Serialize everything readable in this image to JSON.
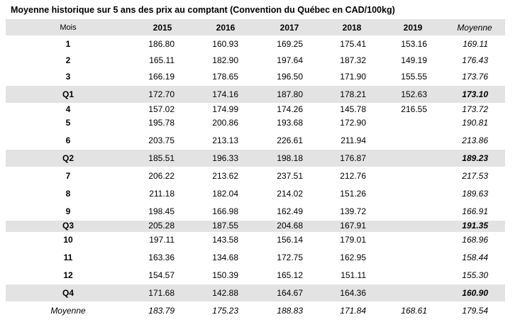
{
  "title": "Moyenne historique sur 5 ans des prix au comptant (Convention du Québec en CAD/100kg)",
  "table": {
    "header": [
      "Mois",
      "2015",
      "2016",
      "2017",
      "2018",
      "2019",
      "Moyenne"
    ],
    "rows": [
      [
        "1",
        "186.80",
        "160.93",
        "169.25",
        "175.41",
        "153.16",
        "169.11"
      ],
      [
        "2",
        "165.11",
        "182.90",
        "197.64",
        "187.32",
        "149.19",
        "176.43"
      ],
      [
        "3",
        "166.19",
        "178.65",
        "196.50",
        "171.90",
        "155.55",
        "173.76"
      ],
      [
        "Q1",
        "172.70",
        "174.16",
        "187.80",
        "178.21",
        "152.63",
        "173.10"
      ],
      [
        "4",
        "157.02",
        "174.99",
        "174.26",
        "145.78",
        "216.55",
        "173.72"
      ],
      [
        "5",
        "195.78",
        "200.86",
        "193.68",
        "172.90",
        null,
        "190.81"
      ],
      [
        "6",
        "203.75",
        "213.13",
        "226.61",
        "211.94",
        null,
        "213.86"
      ],
      [
        "Q2",
        "185.51",
        "196.33",
        "198.18",
        "176.87",
        null,
        "189.23"
      ],
      [
        "7",
        "206.22",
        "213.62",
        "237.51",
        "212.76",
        null,
        "217.53"
      ],
      [
        "8",
        "211.18",
        "182.04",
        "214.02",
        "151.26",
        null,
        "189.63"
      ],
      [
        "9",
        "198.45",
        "166.98",
        "162.49",
        "139.72",
        null,
        "166.91"
      ],
      [
        "Q3",
        "205.28",
        "187.55",
        "204.68",
        "167.91",
        null,
        "191.35"
      ],
      [
        "10",
        "197.11",
        "143.58",
        "156.14",
        "179.01",
        null,
        "168.96"
      ],
      [
        "11",
        "163.36",
        "134.68",
        "172.75",
        "162.95",
        null,
        "158.44"
      ],
      [
        "12",
        "154.57",
        "150.39",
        "165.12",
        "151.11",
        null,
        "155.30"
      ],
      [
        "Q4",
        "171.68",
        "142.88",
        "164.67",
        "164.36",
        null,
        "160.90"
      ],
      [
        "Moyenne",
        "183.79",
        "175.23",
        "188.83",
        "171.84",
        "168.61",
        "179.54"
      ]
    ]
  }
}
